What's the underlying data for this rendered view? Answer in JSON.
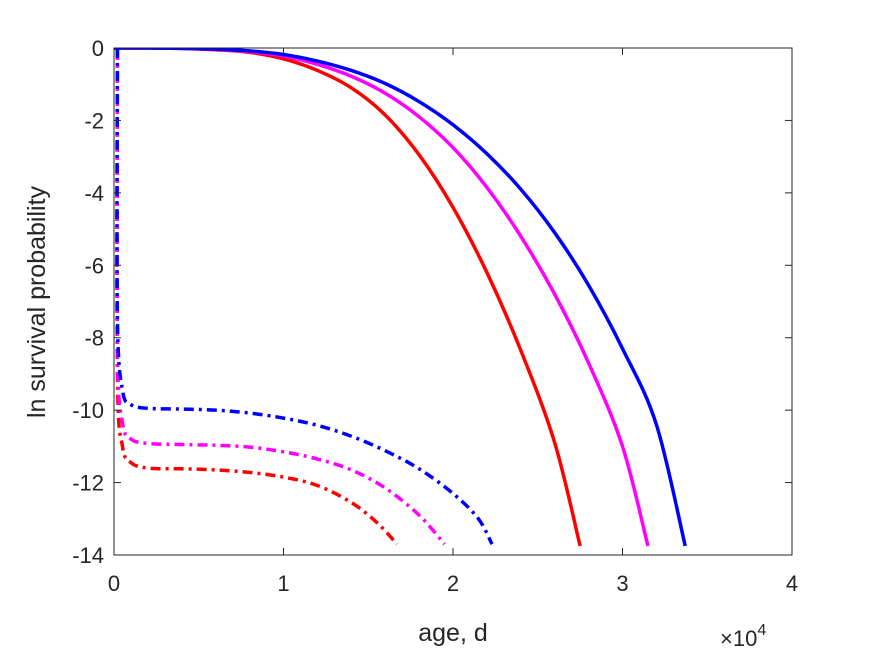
{
  "chart_data": {
    "type": "line",
    "xlabel": "age, d",
    "ylabel": "ln survival probability",
    "x_exponent_base": "×10",
    "x_exponent_power": "4",
    "xlim": [
      0,
      4
    ],
    "ylim": [
      -14,
      0
    ],
    "xticks": [
      0,
      1,
      2,
      3,
      4
    ],
    "xtick_labels": [
      "0",
      "1",
      "2",
      "3",
      "4"
    ],
    "yticks": [
      0,
      -2,
      -4,
      -6,
      -8,
      -10,
      -12,
      -14
    ],
    "ytick_labels": [
      "0",
      "-2",
      "-4",
      "-6",
      "-8",
      "-10",
      "-12",
      "-14"
    ],
    "grid": false,
    "series": [
      {
        "color": "#ff0000",
        "style": "solid",
        "points": [
          [
            0.0,
            0.0
          ],
          [
            0.2,
            0.0
          ],
          [
            0.4,
            -0.01
          ],
          [
            0.6,
            -0.05
          ],
          [
            0.8,
            -0.12
          ],
          [
            1.0,
            -0.3
          ],
          [
            1.2,
            -0.62
          ],
          [
            1.4,
            -1.1
          ],
          [
            1.6,
            -1.85
          ],
          [
            1.8,
            -2.95
          ],
          [
            2.0,
            -4.4
          ],
          [
            2.2,
            -6.2
          ],
          [
            2.4,
            -8.35
          ],
          [
            2.6,
            -10.9
          ],
          [
            2.75,
            -13.75
          ]
        ]
      },
      {
        "color": "#ff00ff",
        "style": "solid",
        "points": [
          [
            0.0,
            0.0
          ],
          [
            0.2,
            0.0
          ],
          [
            0.4,
            -0.01
          ],
          [
            0.6,
            -0.04
          ],
          [
            0.8,
            -0.1
          ],
          [
            1.0,
            -0.22
          ],
          [
            1.2,
            -0.45
          ],
          [
            1.4,
            -0.78
          ],
          [
            1.6,
            -1.25
          ],
          [
            1.8,
            -1.9
          ],
          [
            2.0,
            -2.75
          ],
          [
            2.2,
            -3.85
          ],
          [
            2.4,
            -5.2
          ],
          [
            2.6,
            -6.8
          ],
          [
            2.8,
            -8.7
          ],
          [
            3.0,
            -11.0
          ],
          [
            3.15,
            -13.75
          ]
        ]
      },
      {
        "color": "#0000ff",
        "style": "solid",
        "points": [
          [
            0.0,
            0.0
          ],
          [
            0.2,
            0.0
          ],
          [
            0.4,
            -0.01
          ],
          [
            0.6,
            -0.03
          ],
          [
            0.8,
            -0.08
          ],
          [
            1.0,
            -0.18
          ],
          [
            1.2,
            -0.36
          ],
          [
            1.4,
            -0.62
          ],
          [
            1.6,
            -0.98
          ],
          [
            1.8,
            -1.48
          ],
          [
            2.0,
            -2.12
          ],
          [
            2.2,
            -2.92
          ],
          [
            2.4,
            -3.9
          ],
          [
            2.6,
            -5.1
          ],
          [
            2.8,
            -6.55
          ],
          [
            3.0,
            -8.3
          ],
          [
            3.2,
            -10.4
          ],
          [
            3.37,
            -13.75
          ]
        ]
      },
      {
        "color": "#ff0000",
        "style": "dashdot",
        "points": [
          [
            0.02,
            -0.05
          ],
          [
            0.02,
            -9.0
          ],
          [
            0.05,
            -11.0
          ],
          [
            0.1,
            -11.45
          ],
          [
            0.2,
            -11.6
          ],
          [
            0.4,
            -11.62
          ],
          [
            0.6,
            -11.65
          ],
          [
            0.8,
            -11.72
          ],
          [
            1.0,
            -11.85
          ],
          [
            1.2,
            -12.08
          ],
          [
            1.4,
            -12.55
          ],
          [
            1.55,
            -13.1
          ],
          [
            1.67,
            -13.7
          ]
        ]
      },
      {
        "color": "#ff00ff",
        "style": "dashdot",
        "points": [
          [
            0.02,
            -0.05
          ],
          [
            0.02,
            -8.3
          ],
          [
            0.05,
            -10.35
          ],
          [
            0.1,
            -10.8
          ],
          [
            0.2,
            -10.92
          ],
          [
            0.4,
            -10.95
          ],
          [
            0.6,
            -10.97
          ],
          [
            0.8,
            -11.02
          ],
          [
            1.0,
            -11.15
          ],
          [
            1.2,
            -11.35
          ],
          [
            1.4,
            -11.65
          ],
          [
            1.6,
            -12.15
          ],
          [
            1.8,
            -12.9
          ],
          [
            1.95,
            -13.7
          ]
        ]
      },
      {
        "color": "#0000ff",
        "style": "dashdot",
        "points": [
          [
            0.02,
            0.0
          ],
          [
            0.02,
            -7.4
          ],
          [
            0.05,
            -9.45
          ],
          [
            0.1,
            -9.85
          ],
          [
            0.2,
            -9.95
          ],
          [
            0.4,
            -9.97
          ],
          [
            0.6,
            -10.0
          ],
          [
            0.8,
            -10.08
          ],
          [
            1.0,
            -10.22
          ],
          [
            1.2,
            -10.42
          ],
          [
            1.4,
            -10.72
          ],
          [
            1.6,
            -11.12
          ],
          [
            1.8,
            -11.62
          ],
          [
            2.0,
            -12.3
          ],
          [
            2.15,
            -13.0
          ],
          [
            2.23,
            -13.7
          ]
        ]
      }
    ]
  }
}
